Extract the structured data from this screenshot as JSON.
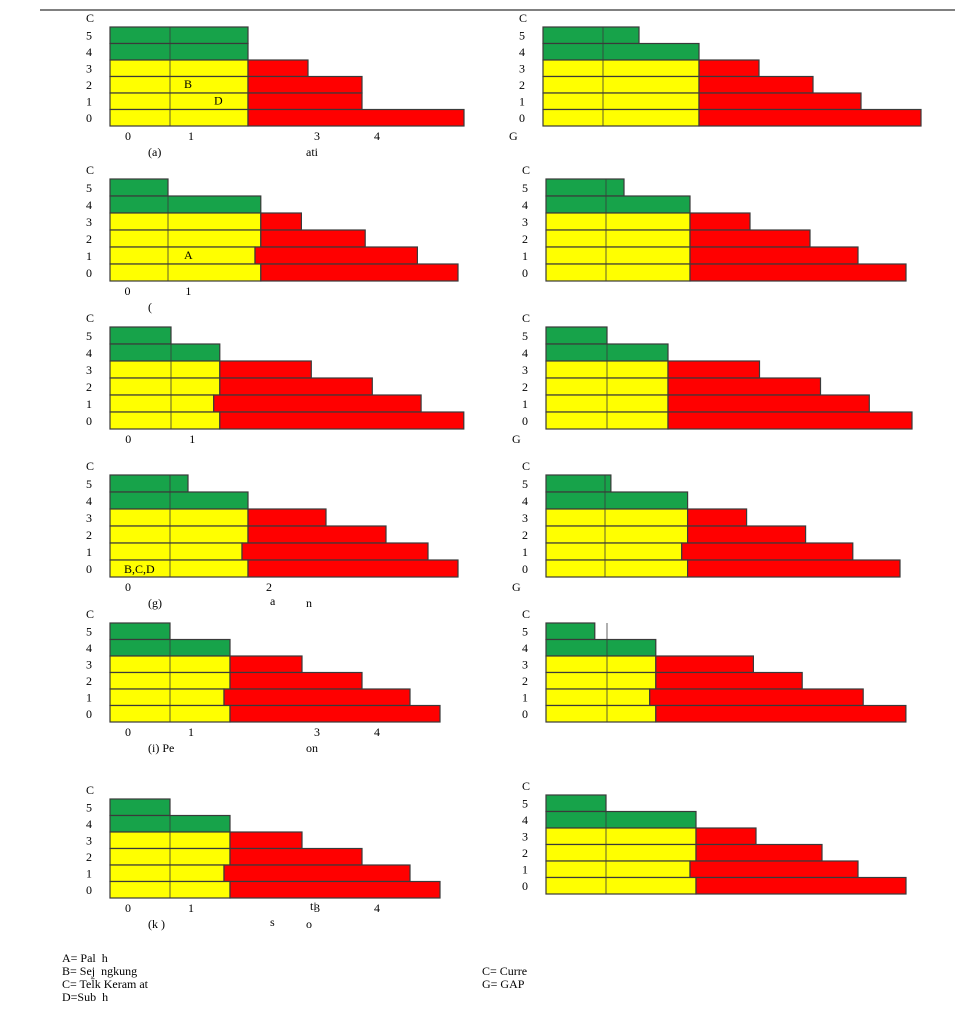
{
  "colors": {
    "green": "#17a34a",
    "yellow": "#ffff00",
    "red": "#ff0000",
    "cell_border": "#3a3a3a",
    "rule": "#000000"
  },
  "chart_data": [
    {
      "id": "a",
      "type": "stacked-bar",
      "ylabel": "C",
      "y_ticks": [
        "5",
        "4",
        "3",
        "2",
        "1",
        "0"
      ],
      "x_ticks": [
        "0",
        "1",
        "3",
        "4"
      ],
      "caption_left": "(a)",
      "caption_right": "ati",
      "annotations": [
        "B",
        "D"
      ],
      "rows": [
        {
          "y": 5,
          "green": [
            0,
            2.3
          ],
          "yellow": null,
          "red": []
        },
        {
          "y": 4,
          "green": [
            0,
            2.3
          ],
          "yellow": null,
          "red": []
        },
        {
          "y": 3,
          "green": null,
          "yellow": [
            0,
            2.3
          ],
          "red": [
            [
              2.3,
              3.3
            ]
          ]
        },
        {
          "y": 2,
          "green": null,
          "yellow": [
            0,
            2.3
          ],
          "red": [
            [
              2.3,
              4.2
            ]
          ]
        },
        {
          "y": 1,
          "green": null,
          "yellow": [
            0,
            2.3
          ],
          "red": [
            [
              2.3,
              4.2
            ]
          ]
        },
        {
          "y": 0,
          "green": null,
          "yellow": [
            0,
            2.3
          ],
          "red": [
            [
              2.3,
              5.9
            ]
          ]
        }
      ]
    },
    {
      "id": "b",
      "type": "stacked-bar",
      "ylabel": "C",
      "y_ticks": [
        "5",
        "4",
        "3",
        "2",
        "1",
        "0"
      ],
      "x_ticks": [],
      "gap_label": "G",
      "rows": [
        {
          "y": 5,
          "green": [
            0,
            1.6
          ],
          "yellow": null,
          "red": []
        },
        {
          "y": 4,
          "green": [
            0,
            2.6
          ],
          "yellow": null,
          "red": []
        },
        {
          "y": 3,
          "green": null,
          "yellow": [
            0,
            2.6
          ],
          "red": [
            [
              2.6,
              3.6
            ]
          ]
        },
        {
          "y": 2,
          "green": null,
          "yellow": [
            0,
            2.6
          ],
          "red": [
            [
              2.6,
              4.5
            ]
          ]
        },
        {
          "y": 1,
          "green": null,
          "yellow": [
            0,
            2.6
          ],
          "red": [
            [
              2.6,
              5.3
            ]
          ]
        },
        {
          "y": 0,
          "green": null,
          "yellow": [
            0,
            2.6
          ],
          "red": [
            [
              2.6,
              6.3
            ]
          ]
        }
      ]
    },
    {
      "id": "c",
      "type": "stacked-bar",
      "ylabel": "C",
      "y_ticks": [
        "5",
        "4",
        "3",
        "2",
        "1",
        "0"
      ],
      "x_ticks": [
        "0",
        "1"
      ],
      "caption_left": "(",
      "caption_right": "",
      "annotations": [
        "A"
      ],
      "rows": [
        {
          "y": 5,
          "green": [
            0,
            1.0
          ],
          "yellow": null,
          "red": []
        },
        {
          "y": 4,
          "green": [
            0,
            2.6
          ],
          "yellow": null,
          "red": []
        },
        {
          "y": 3,
          "green": null,
          "yellow": [
            0,
            2.6
          ],
          "red": [
            [
              2.6,
              3.3
            ]
          ]
        },
        {
          "y": 2,
          "green": null,
          "yellow": [
            0,
            2.6
          ],
          "red": [
            [
              2.6,
              4.4
            ]
          ]
        },
        {
          "y": 1,
          "green": null,
          "yellow": [
            0,
            2.5
          ],
          "red": [
            [
              2.5,
              5.3
            ]
          ]
        },
        {
          "y": 0,
          "green": null,
          "yellow": [
            0,
            2.6
          ],
          "red": [
            [
              2.6,
              6.0
            ]
          ]
        }
      ]
    },
    {
      "id": "d",
      "type": "stacked-bar",
      "ylabel": "C",
      "y_ticks": [
        "5",
        "4",
        "3",
        "2",
        "1",
        "0"
      ],
      "x_ticks": [],
      "rows": [
        {
          "y": 5,
          "green": [
            0,
            1.3
          ],
          "yellow": null,
          "red": []
        },
        {
          "y": 4,
          "green": [
            0,
            2.4
          ],
          "yellow": null,
          "red": []
        },
        {
          "y": 3,
          "green": null,
          "yellow": [
            0,
            2.4
          ],
          "red": [
            [
              2.4,
              3.4
            ]
          ]
        },
        {
          "y": 2,
          "green": null,
          "yellow": [
            0,
            2.4
          ],
          "red": [
            [
              2.4,
              4.4
            ]
          ]
        },
        {
          "y": 1,
          "green": null,
          "yellow": [
            0,
            2.4
          ],
          "red": [
            [
              2.4,
              5.2
            ]
          ]
        },
        {
          "y": 0,
          "green": null,
          "yellow": [
            0,
            2.4
          ],
          "red": [
            [
              2.4,
              6.0
            ]
          ]
        }
      ]
    },
    {
      "id": "e",
      "type": "stacked-bar",
      "ylabel": "C",
      "y_ticks": [
        "5",
        "4",
        "3",
        "2",
        "1",
        "0"
      ],
      "x_ticks": [
        "0",
        "1"
      ],
      "rows": [
        {
          "y": 5,
          "green": [
            0,
            1.0
          ],
          "yellow": null,
          "red": []
        },
        {
          "y": 4,
          "green": [
            0,
            1.8
          ],
          "yellow": null,
          "red": []
        },
        {
          "y": 3,
          "green": null,
          "yellow": [
            0,
            1.8
          ],
          "red": [
            [
              1.8,
              3.3
            ]
          ]
        },
        {
          "y": 2,
          "green": null,
          "yellow": [
            0,
            1.8
          ],
          "red": [
            [
              1.8,
              4.3
            ]
          ]
        },
        {
          "y": 1,
          "green": null,
          "yellow": [
            0,
            1.7
          ],
          "red": [
            [
              1.7,
              5.1
            ]
          ]
        },
        {
          "y": 0,
          "green": null,
          "yellow": [
            0,
            1.8
          ],
          "red": [
            [
              1.8,
              5.8
            ]
          ]
        }
      ]
    },
    {
      "id": "f",
      "type": "stacked-bar",
      "ylabel": "C",
      "y_ticks": [
        "5",
        "4",
        "3",
        "2",
        "1",
        "0"
      ],
      "x_ticks": [],
      "gap_label": "G",
      "rows": [
        {
          "y": 5,
          "green": [
            0,
            1.0
          ],
          "yellow": null,
          "red": []
        },
        {
          "y": 4,
          "green": [
            0,
            2.0
          ],
          "yellow": null,
          "red": []
        },
        {
          "y": 3,
          "green": null,
          "yellow": [
            0,
            2.0
          ],
          "red": [
            [
              2.0,
              3.5
            ]
          ]
        },
        {
          "y": 2,
          "green": null,
          "yellow": [
            0,
            2.0
          ],
          "red": [
            [
              2.0,
              4.5
            ]
          ]
        },
        {
          "y": 1,
          "green": null,
          "yellow": [
            0,
            2.0
          ],
          "red": [
            [
              2.0,
              5.3
            ]
          ]
        },
        {
          "y": 0,
          "green": null,
          "yellow": [
            0,
            2.0
          ],
          "red": [
            [
              2.0,
              6.0
            ]
          ]
        }
      ]
    },
    {
      "id": "g",
      "type": "stacked-bar",
      "ylabel": "C",
      "y_ticks": [
        "5",
        "4",
        "3",
        "2",
        "1",
        "0"
      ],
      "x_ticks": [
        "0",
        "2"
      ],
      "caption_left": "(g)",
      "caption_right": "n",
      "caption_mid": "a",
      "annotations": [
        "B,C,D"
      ],
      "rows": [
        {
          "y": 5,
          "green": [
            0,
            1.3
          ],
          "yellow": null,
          "red": []
        },
        {
          "y": 4,
          "green": [
            0,
            2.3
          ],
          "yellow": null,
          "red": []
        },
        {
          "y": 3,
          "green": null,
          "yellow": [
            0,
            2.3
          ],
          "red": [
            [
              2.3,
              3.6
            ]
          ]
        },
        {
          "y": 2,
          "green": null,
          "yellow": [
            0,
            2.3
          ],
          "red": [
            [
              2.3,
              4.6
            ]
          ]
        },
        {
          "y": 1,
          "green": null,
          "yellow": [
            0,
            2.2
          ],
          "red": [
            [
              2.2,
              5.3
            ]
          ]
        },
        {
          "y": 0,
          "green": null,
          "yellow": [
            0,
            2.3
          ],
          "red": [
            [
              2.3,
              5.8
            ]
          ]
        }
      ]
    },
    {
      "id": "h",
      "type": "stacked-bar",
      "ylabel": "C",
      "y_ticks": [
        "5",
        "4",
        "3",
        "2",
        "1",
        "0"
      ],
      "x_ticks": [],
      "gap_label": "G",
      "rows": [
        {
          "y": 5,
          "green": [
            0,
            1.1
          ],
          "yellow": null,
          "red": []
        },
        {
          "y": 4,
          "green": [
            0,
            2.4
          ],
          "yellow": null,
          "red": []
        },
        {
          "y": 3,
          "green": null,
          "yellow": [
            0,
            2.4
          ],
          "red": [
            [
              2.4,
              3.4
            ]
          ]
        },
        {
          "y": 2,
          "green": null,
          "yellow": [
            0,
            2.4
          ],
          "red": [
            [
              2.4,
              4.4
            ]
          ]
        },
        {
          "y": 1,
          "green": null,
          "yellow": [
            0,
            2.3
          ],
          "red": [
            [
              2.3,
              5.2
            ]
          ]
        },
        {
          "y": 0,
          "green": null,
          "yellow": [
            0,
            2.4
          ],
          "red": [
            [
              2.4,
              6.0
            ]
          ]
        }
      ]
    },
    {
      "id": "i",
      "type": "stacked-bar",
      "ylabel": "C",
      "y_ticks": [
        "5",
        "4",
        "3",
        "2",
        "1",
        "0"
      ],
      "x_ticks": [
        "0",
        "1",
        "3",
        "4"
      ],
      "caption_left": "(i)  Pe",
      "caption_right": "on",
      "rows": [
        {
          "y": 5,
          "green": [
            0,
            1.0
          ],
          "yellow": null,
          "red": []
        },
        {
          "y": 4,
          "green": [
            0,
            2.0
          ],
          "yellow": null,
          "red": []
        },
        {
          "y": 3,
          "green": null,
          "yellow": [
            0,
            2.0
          ],
          "red": [
            [
              2.0,
              3.2
            ]
          ]
        },
        {
          "y": 2,
          "green": null,
          "yellow": [
            0,
            2.0
          ],
          "red": [
            [
              2.0,
              4.2
            ]
          ]
        },
        {
          "y": 1,
          "green": null,
          "yellow": [
            0,
            1.9
          ],
          "red": [
            [
              1.9,
              5.0
            ]
          ]
        },
        {
          "y": 0,
          "green": null,
          "yellow": [
            0,
            2.0
          ],
          "red": [
            [
              2.0,
              5.5
            ]
          ]
        }
      ]
    },
    {
      "id": "j",
      "type": "stacked-bar",
      "ylabel": "C",
      "y_ticks": [
        "5",
        "4",
        "3",
        "2",
        "1",
        "0"
      ],
      "x_ticks": [],
      "rows": [
        {
          "y": 5,
          "green": [
            0,
            0.8
          ],
          "yellow": null,
          "red": []
        },
        {
          "y": 4,
          "green": [
            0,
            1.8
          ],
          "yellow": null,
          "red": []
        },
        {
          "y": 3,
          "green": null,
          "yellow": [
            0,
            1.8
          ],
          "red": [
            [
              1.8,
              3.4
            ]
          ]
        },
        {
          "y": 2,
          "green": null,
          "yellow": [
            0,
            1.8
          ],
          "red": [
            [
              1.8,
              4.2
            ]
          ]
        },
        {
          "y": 1,
          "green": null,
          "yellow": [
            0,
            1.7
          ],
          "red": [
            [
              1.7,
              5.2
            ]
          ]
        },
        {
          "y": 0,
          "green": null,
          "yellow": [
            0,
            1.8
          ],
          "red": [
            [
              1.8,
              5.9
            ]
          ]
        }
      ]
    },
    {
      "id": "k",
      "type": "stacked-bar",
      "ylabel": "C",
      "y_ticks": [
        "5",
        "4",
        "3",
        "2",
        "1",
        "0"
      ],
      "x_ticks": [
        "0",
        "1",
        "3",
        "4"
      ],
      "caption_left": "(k   )",
      "caption_right": "o",
      "caption_mid": "s",
      "caption_top": "ti",
      "rows": [
        {
          "y": 5,
          "green": [
            0,
            1.0
          ],
          "yellow": null,
          "red": []
        },
        {
          "y": 4,
          "green": [
            0,
            2.0
          ],
          "yellow": null,
          "red": []
        },
        {
          "y": 3,
          "green": null,
          "yellow": [
            0,
            2.0
          ],
          "red": [
            [
              2.0,
              3.2
            ]
          ]
        },
        {
          "y": 2,
          "green": null,
          "yellow": [
            0,
            2.0
          ],
          "red": [
            [
              2.0,
              4.2
            ]
          ]
        },
        {
          "y": 1,
          "green": null,
          "yellow": [
            0,
            1.9
          ],
          "red": [
            [
              1.9,
              5.0
            ]
          ]
        },
        {
          "y": 0,
          "green": null,
          "yellow": [
            0,
            2.0
          ],
          "red": [
            [
              2.0,
              5.5
            ]
          ]
        }
      ]
    },
    {
      "id": "l",
      "type": "stacked-bar",
      "ylabel": "C",
      "y_ticks": [
        "5",
        "4",
        "3",
        "2",
        "1",
        "0"
      ],
      "x_ticks": [],
      "rows": [
        {
          "y": 5,
          "green": [
            0,
            1.0
          ],
          "yellow": null,
          "red": []
        },
        {
          "y": 4,
          "green": [
            0,
            2.5
          ],
          "yellow": null,
          "red": []
        },
        {
          "y": 3,
          "green": null,
          "yellow": [
            0,
            2.5
          ],
          "red": [
            [
              2.5,
              3.5
            ]
          ]
        },
        {
          "y": 2,
          "green": null,
          "yellow": [
            0,
            2.5
          ],
          "red": [
            [
              2.5,
              4.6
            ]
          ]
        },
        {
          "y": 1,
          "green": null,
          "yellow": [
            0,
            2.4
          ],
          "red": [
            [
              2.4,
              5.2
            ]
          ]
        },
        {
          "y": 0,
          "green": null,
          "yellow": [
            0,
            2.5
          ],
          "red": [
            [
              2.5,
              6.0
            ]
          ]
        }
      ]
    }
  ],
  "legend_left": [
    "A= Pal  h",
    "B= Sej  ngkung",
    "C= Tel̄k Keram at",
    "D=Sub  h"
  ],
  "legend_right": [
    "C= Curre",
    "G= GAP"
  ]
}
